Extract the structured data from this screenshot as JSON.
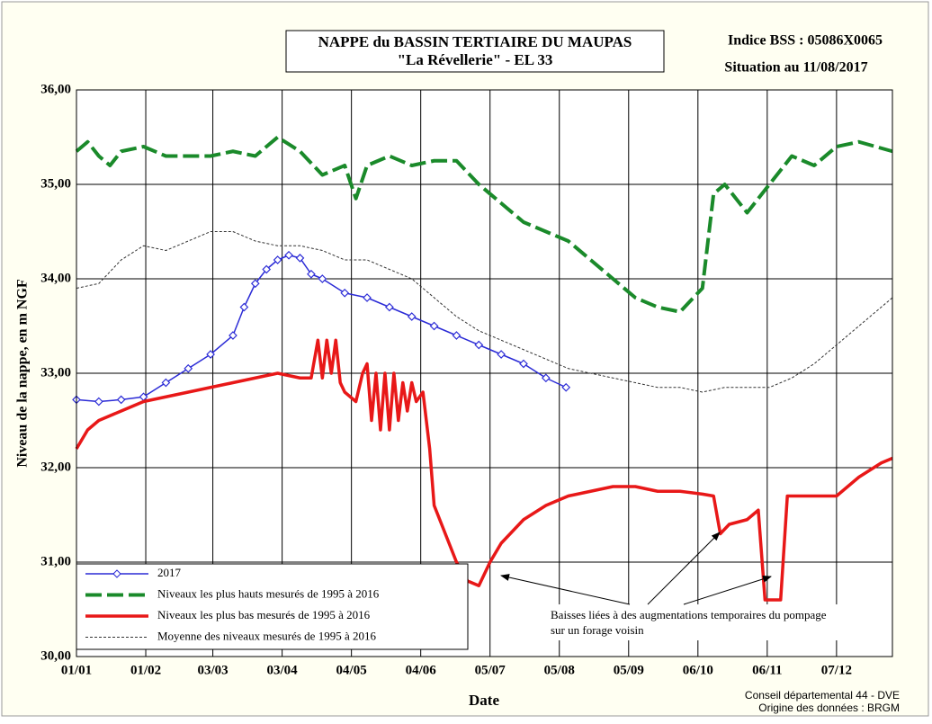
{
  "chart_data": {
    "type": "line",
    "title": "NAPPE du BASSIN TERTIAIRE DU MAUPAS",
    "subtitle": "\"La Révellerie\" - EL 33",
    "annotations": [
      "Indice BSS : 05086X0065",
      "Situation au 11/08/2017",
      "Baisses liées à des augmentations temporaires du pompage",
      "sur un forage voisin",
      "Conseil départemental 44 - DVE",
      "Origine des données : BRGM"
    ],
    "x_label": "Date",
    "y_label": "Niveau de la nappe, en m NGF",
    "xlim": [
      0,
      365
    ],
    "ylim": [
      30,
      36
    ],
    "xticks": [
      {
        "value": 0,
        "label": "01/01"
      },
      {
        "value": 31,
        "label": "01/02"
      },
      {
        "value": 61,
        "label": "03/03"
      },
      {
        "value": 92,
        "label": "03/04"
      },
      {
        "value": 123,
        "label": "04/05"
      },
      {
        "value": 154,
        "label": "04/06"
      },
      {
        "value": 185,
        "label": "05/07"
      },
      {
        "value": 216,
        "label": "05/08"
      },
      {
        "value": 247,
        "label": "05/09"
      },
      {
        "value": 278,
        "label": "06/10"
      },
      {
        "value": 309,
        "label": "06/11"
      },
      {
        "value": 340,
        "label": "07/12"
      }
    ],
    "yticks": [
      {
        "value": 30,
        "label": "30,00"
      },
      {
        "value": 31,
        "label": "31,00"
      },
      {
        "value": 32,
        "label": "32,00"
      },
      {
        "value": 33,
        "label": "33,00"
      },
      {
        "value": 34,
        "label": "34,00"
      },
      {
        "value": 35,
        "label": "35,00"
      },
      {
        "value": 36,
        "label": "36,00"
      }
    ],
    "grid": true,
    "legend": "lower left",
    "series": [
      {
        "name": "2017",
        "color": "#2b2bd6",
        "line_style": "solid-markers",
        "x": [
          0,
          10,
          20,
          30,
          40,
          50,
          60,
          70,
          75,
          80,
          85,
          90,
          95,
          100,
          105,
          110,
          120,
          130,
          140,
          150,
          160,
          170,
          180,
          190,
          200,
          210,
          219
        ],
        "values": [
          32.72,
          32.7,
          32.72,
          32.75,
          32.9,
          33.05,
          33.2,
          33.4,
          33.7,
          33.95,
          34.1,
          34.2,
          34.25,
          34.22,
          34.05,
          34.0,
          33.85,
          33.8,
          33.7,
          33.6,
          33.5,
          33.4,
          33.3,
          33.2,
          33.1,
          32.95,
          32.85
        ]
      },
      {
        "name": "Niveaux les plus hauts mesurés de 1995 à 2016",
        "color": "#1a8a2a",
        "line_style": "dashed",
        "x": [
          0,
          5,
          10,
          15,
          20,
          30,
          40,
          50,
          60,
          70,
          80,
          90,
          100,
          110,
          120,
          125,
          130,
          140,
          150,
          160,
          170,
          180,
          190,
          200,
          210,
          220,
          230,
          240,
          250,
          260,
          270,
          280,
          285,
          290,
          300,
          310,
          320,
          330,
          340,
          350,
          365
        ],
        "values": [
          35.35,
          35.45,
          35.3,
          35.2,
          35.35,
          35.4,
          35.3,
          35.3,
          35.3,
          35.35,
          35.3,
          35.5,
          35.35,
          35.1,
          35.2,
          34.85,
          35.2,
          35.3,
          35.2,
          35.25,
          35.25,
          35.0,
          34.8,
          34.6,
          34.5,
          34.4,
          34.2,
          34.0,
          33.8,
          33.7,
          33.65,
          33.9,
          34.9,
          35.0,
          34.7,
          35.0,
          35.3,
          35.2,
          35.4,
          35.45,
          35.35
        ]
      },
      {
        "name": "Niveaux les plus bas mesurés de 1995 à 2016",
        "color": "#e81818",
        "line_style": "solid",
        "x": [
          0,
          5,
          10,
          20,
          30,
          40,
          50,
          60,
          70,
          80,
          90,
          100,
          105,
          108,
          110,
          112,
          114,
          116,
          118,
          120,
          125,
          128,
          130,
          132,
          134,
          136,
          138,
          140,
          142,
          144,
          146,
          148,
          150,
          152,
          155,
          158,
          160,
          165,
          170,
          175,
          180,
          185,
          190,
          200,
          210,
          220,
          230,
          240,
          250,
          260,
          270,
          280,
          285,
          288,
          292,
          300,
          305,
          308,
          315,
          318,
          330,
          340,
          350,
          360,
          365
        ],
        "values": [
          32.2,
          32.4,
          32.5,
          32.6,
          32.7,
          32.75,
          32.8,
          32.85,
          32.9,
          32.95,
          33.0,
          32.95,
          32.95,
          33.35,
          32.95,
          33.35,
          33.0,
          33.35,
          32.9,
          32.8,
          32.7,
          33.0,
          33.1,
          32.5,
          33.0,
          32.4,
          33.0,
          32.4,
          33.0,
          32.5,
          32.9,
          32.6,
          32.9,
          32.7,
          32.8,
          32.2,
          31.6,
          31.3,
          31.0,
          30.8,
          30.75,
          31.0,
          31.2,
          31.45,
          31.6,
          31.7,
          31.75,
          31.8,
          31.8,
          31.75,
          31.75,
          31.72,
          31.7,
          31.3,
          31.4,
          31.45,
          31.55,
          30.6,
          30.6,
          31.7,
          31.7,
          31.7,
          31.9,
          32.05,
          32.1
        ]
      },
      {
        "name": "Moyenne des niveaux mesurés de 1995 à 2016",
        "color": "#333333",
        "line_style": "dotted",
        "x": [
          0,
          10,
          20,
          30,
          40,
          50,
          60,
          70,
          80,
          90,
          100,
          110,
          120,
          130,
          140,
          150,
          160,
          170,
          180,
          190,
          200,
          210,
          220,
          230,
          240,
          250,
          260,
          270,
          280,
          290,
          300,
          310,
          320,
          330,
          340,
          350,
          365
        ],
        "values": [
          33.9,
          33.95,
          34.2,
          34.35,
          34.3,
          34.4,
          34.5,
          34.5,
          34.4,
          34.35,
          34.35,
          34.3,
          34.2,
          34.2,
          34.1,
          34.0,
          33.8,
          33.6,
          33.45,
          33.35,
          33.25,
          33.15,
          33.05,
          33.0,
          32.95,
          32.9,
          32.85,
          32.85,
          32.8,
          32.85,
          32.85,
          32.85,
          32.95,
          33.1,
          33.3,
          33.5,
          33.8
        ]
      }
    ]
  }
}
